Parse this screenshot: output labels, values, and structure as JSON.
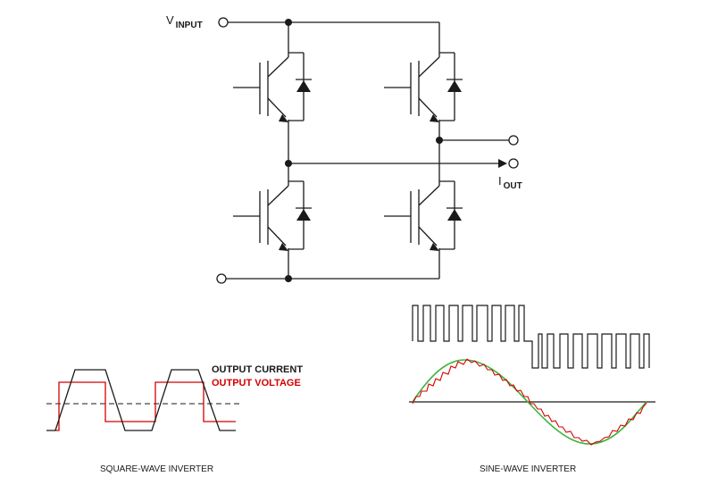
{
  "circuit": {
    "v_input_main": "V",
    "v_input_sub": "INPUT",
    "i_out_main": "I",
    "i_out_sub": "OUT"
  },
  "square_wave": {
    "legend_current": "OUTPUT CURRENT",
    "legend_voltage": "OUTPUT VOLTAGE",
    "caption": "SQUARE-WAVE INVERTER"
  },
  "sine_wave": {
    "caption": "SINE-WAVE INVERTER"
  },
  "colors": {
    "line": "#1a1a1a",
    "voltage": "#d40000",
    "sine_fit": "#3cb43c"
  }
}
